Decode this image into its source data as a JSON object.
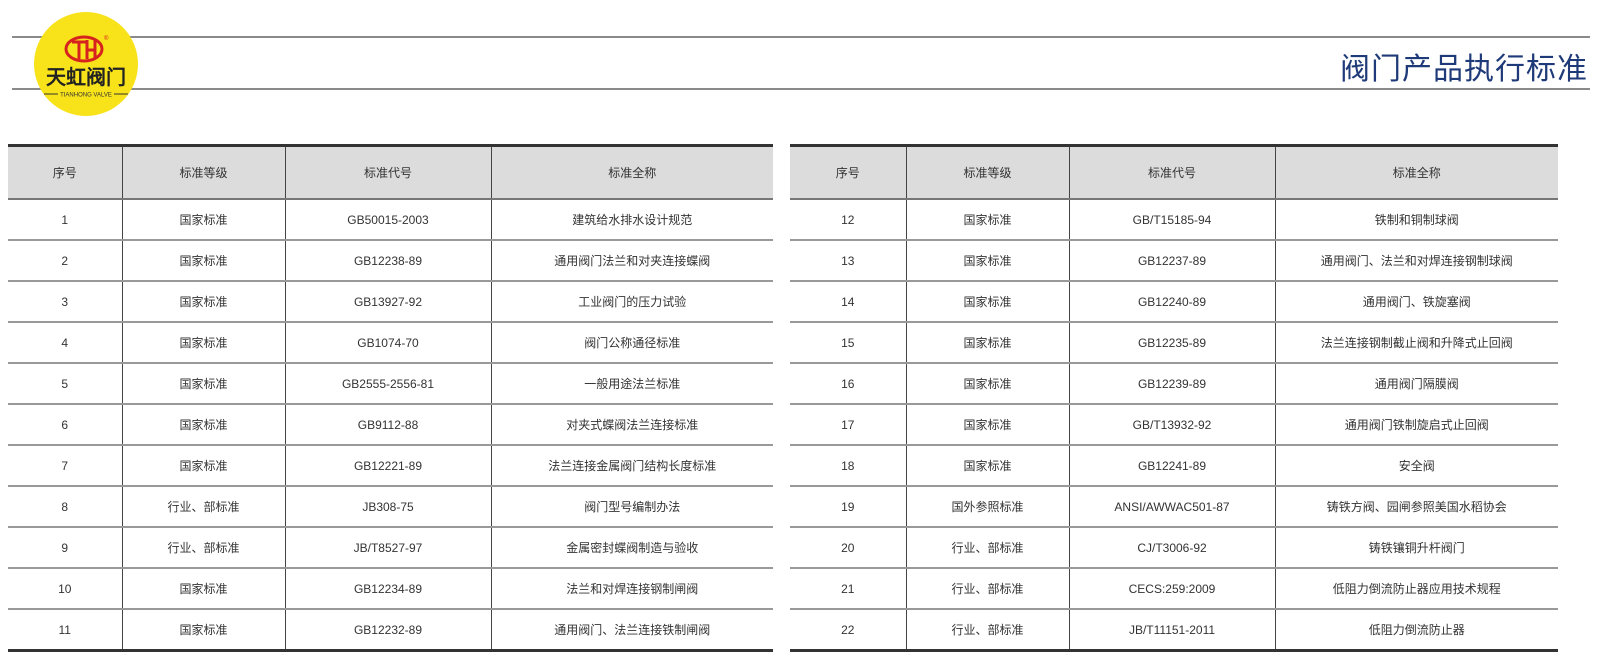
{
  "brand": {
    "name_cn": "天虹阀门",
    "name_en": "TIANHONG VALVE",
    "monogram": "TH",
    "colors": {
      "badge": "#f8e21a",
      "mark": "#d6231e"
    }
  },
  "header": {
    "title": "阀门产品执行标准",
    "title_color": "#1f3a78"
  },
  "columns": [
    "序号",
    "标准等级",
    "标准代号",
    "标准全称"
  ],
  "tables": [
    {
      "rows": [
        [
          "1",
          "国家标准",
          "GB50015-2003",
          "建筑给水排水设计规范"
        ],
        [
          "2",
          "国家标准",
          "GB12238-89",
          "通用阀门法兰和对夹连接蝶阀"
        ],
        [
          "3",
          "国家标准",
          "GB13927-92",
          "工业阀门的压力试验"
        ],
        [
          "4",
          "国家标准",
          "GB1074-70",
          "阀门公称通径标准"
        ],
        [
          "5",
          "国家标准",
          "GB2555-2556-81",
          "一般用途法兰标准"
        ],
        [
          "6",
          "国家标准",
          "GB9112-88",
          "对夹式蝶阀法兰连接标准"
        ],
        [
          "7",
          "国家标准",
          "GB12221-89",
          "法兰连接金属阀门结构长度标准"
        ],
        [
          "8",
          "行业、部标准",
          "JB308-75",
          "阀门型号编制办法"
        ],
        [
          "9",
          "行业、部标准",
          "JB/T8527-97",
          "金属密封蝶阀制造与验收"
        ],
        [
          "10",
          "国家标准",
          "GB12234-89",
          "法兰和对焊连接钢制闸阀"
        ],
        [
          "11",
          "国家标准",
          "GB12232-89",
          "通用阀门、法兰连接铁制闸阀"
        ]
      ]
    },
    {
      "rows": [
        [
          "12",
          "国家标准",
          "GB/T15185-94",
          "铁制和铜制球阀"
        ],
        [
          "13",
          "国家标准",
          "GB12237-89",
          "通用阀门、法兰和对焊连接钢制球阀"
        ],
        [
          "14",
          "国家标准",
          "GB12240-89",
          "通用阀门、铁旋塞阀"
        ],
        [
          "15",
          "国家标准",
          "GB12235-89",
          "法兰连接钢制截止阀和升降式止回阀"
        ],
        [
          "16",
          "国家标准",
          "GB12239-89",
          "通用阀门隔膜阀"
        ],
        [
          "17",
          "国家标准",
          "GB/T13932-92",
          "通用阀门铁制旋启式止回阀"
        ],
        [
          "18",
          "国家标准",
          "GB12241-89",
          "安全阀"
        ],
        [
          "19",
          "国外参照标准",
          "ANSI/AWWAC501-87",
          "铸铁方阀、园闸参照美国水稻协会"
        ],
        [
          "20",
          "行业、部标准",
          "CJ/T3006-92",
          "铸铁镶铜升杆阀门"
        ],
        [
          "21",
          "行业、部标准",
          "CECS:259:2009",
          "低阻力倒流防止器应用技术规程"
        ],
        [
          "22",
          "行业、部标准",
          "JB/T11151-2011",
          "低阻力倒流防止器"
        ]
      ]
    }
  ]
}
